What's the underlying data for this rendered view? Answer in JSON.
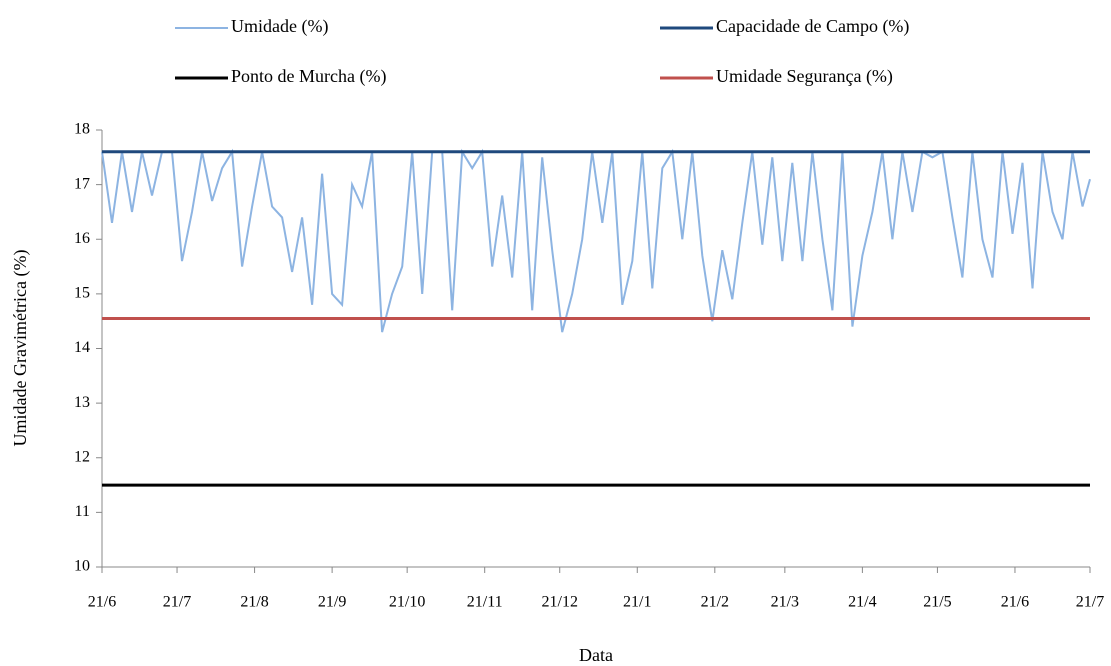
{
  "chart_data": {
    "type": "line",
    "x_label": "Data",
    "y_label": "Umidade  Gravimétrica (%)",
    "xlim": [
      0,
      395
    ],
    "xticks": [
      {
        "value": 0,
        "label": "21/6"
      },
      {
        "value": 30,
        "label": "21/7"
      },
      {
        "value": 61,
        "label": "21/8"
      },
      {
        "value": 92,
        "label": "21/9"
      },
      {
        "value": 122,
        "label": "21/10"
      },
      {
        "value": 153,
        "label": "21/11"
      },
      {
        "value": 183,
        "label": "21/12"
      },
      {
        "value": 214,
        "label": "21/1"
      },
      {
        "value": 245,
        "label": "21/2"
      },
      {
        "value": 273,
        "label": "21/3"
      },
      {
        "value": 304,
        "label": "21/4"
      },
      {
        "value": 334,
        "label": "21/5"
      },
      {
        "value": 365,
        "label": "21/6"
      },
      {
        "value": 395,
        "label": "21/7"
      }
    ],
    "ylim": [
      10,
      18
    ],
    "yticks": [
      10,
      11,
      12,
      13,
      14,
      15,
      16,
      17,
      18
    ],
    "grid": false,
    "legend": "top",
    "series": [
      {
        "name": "Umidade (%)",
        "color": "#8db4e2",
        "x": [
          0,
          4,
          8,
          12,
          16,
          20,
          24,
          28,
          32,
          36,
          40,
          44,
          48,
          52,
          56,
          60,
          64,
          68,
          72,
          76,
          80,
          84,
          88,
          92,
          96,
          100,
          104,
          108,
          112,
          116,
          120,
          124,
          128,
          132,
          136,
          140,
          144,
          148,
          152,
          156,
          160,
          164,
          168,
          172,
          176,
          180,
          184,
          188,
          192,
          196,
          200,
          204,
          208,
          212,
          216,
          220,
          224,
          228,
          232,
          236,
          240,
          244,
          248,
          252,
          256,
          260,
          264,
          268,
          272,
          276,
          280,
          284,
          288,
          292,
          296,
          300,
          304,
          308,
          312,
          316,
          320,
          324,
          328,
          332,
          336,
          340,
          344,
          348,
          352,
          356,
          360,
          364,
          368,
          372,
          376,
          380,
          384,
          388,
          392,
          395
        ],
        "values": [
          17.6,
          16.3,
          17.6,
          16.5,
          17.6,
          16.8,
          17.6,
          17.6,
          15.6,
          16.5,
          17.6,
          16.7,
          17.3,
          17.6,
          15.5,
          16.6,
          17.6,
          16.6,
          16.4,
          15.4,
          16.4,
          14.8,
          17.2,
          15.0,
          14.8,
          17.0,
          16.6,
          17.6,
          14.3,
          15.0,
          15.5,
          17.6,
          15.0,
          17.6,
          17.6,
          14.7,
          17.6,
          17.3,
          17.6,
          15.5,
          16.8,
          15.3,
          17.6,
          14.7,
          17.5,
          15.8,
          14.3,
          15.0,
          16.0,
          17.6,
          16.3,
          17.6,
          14.8,
          15.6,
          17.6,
          15.1,
          17.3,
          17.6,
          16.0,
          17.6,
          15.7,
          14.5,
          15.8,
          14.9,
          16.3,
          17.6,
          15.9,
          17.5,
          15.6,
          17.4,
          15.6,
          17.6,
          16.0,
          14.7,
          17.6,
          14.4,
          15.7,
          16.5,
          17.6,
          16.0,
          17.6,
          16.5,
          17.6,
          17.5,
          17.6,
          16.4,
          15.3,
          17.6,
          16.0,
          15.3,
          17.6,
          16.1,
          17.4,
          15.1,
          17.6,
          16.5,
          16.0,
          17.6,
          16.6,
          17.1
        ]
      },
      {
        "name": "Capacidade de Campo (%)",
        "color": "#1f497d",
        "x": [
          0,
          395
        ],
        "values": [
          17.6,
          17.6
        ]
      },
      {
        "name": "Ponto de Murcha (%)",
        "color": "#000000",
        "x": [
          0,
          395
        ],
        "values": [
          11.5,
          11.5
        ]
      },
      {
        "name": "Umidade Segurança (%)",
        "color": "#c0504d",
        "x": [
          0,
          395
        ],
        "values": [
          14.55,
          14.55
        ]
      }
    ]
  }
}
